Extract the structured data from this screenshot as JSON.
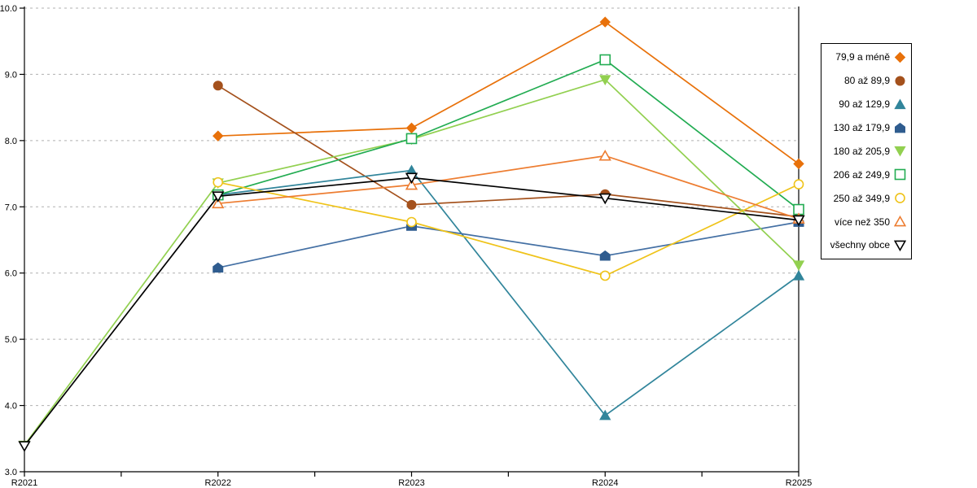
{
  "chart_data": {
    "type": "line",
    "title": "",
    "xlabel": "",
    "ylabel": "",
    "categories": [
      "R2021",
      "R2022",
      "R2023",
      "R2024",
      "R2025"
    ],
    "ylim": [
      3.0,
      10.0
    ],
    "ytick_step": 1.0,
    "ytick_labels": [
      "3.0",
      "4.0",
      "5.0",
      "6.0",
      "7.0",
      "8.0",
      "9.0",
      "10.0"
    ],
    "grid": "horizontal-dashed",
    "gridline_color": "#b0b0b0",
    "axis_color": "#000000",
    "legend_position": "right",
    "series": [
      {
        "name": "79,9 a méně",
        "color": "#E8710A",
        "marker": "diamond",
        "fill": "solid",
        "values": [
          null,
          8.07,
          8.19,
          9.79,
          7.65
        ]
      },
      {
        "name": "80 až 89,9",
        "color": "#A4511C",
        "marker": "circle",
        "fill": "solid",
        "values": [
          null,
          8.83,
          7.03,
          7.19,
          6.85
        ]
      },
      {
        "name": "90 až 129,9",
        "color": "#31859B",
        "marker": "triangle-up",
        "fill": "solid",
        "values": [
          null,
          7.18,
          7.55,
          3.85,
          5.96
        ]
      },
      {
        "name": "130 až 179,9",
        "color": "#4470A4",
        "marker_color": "#2F5C8F",
        "marker": "pentagon",
        "fill": "solid",
        "values": [
          null,
          6.08,
          6.71,
          6.26,
          6.77
        ]
      },
      {
        "name": "180 až 205,9",
        "color": "#92D050",
        "marker": "triangle-down",
        "fill": "solid",
        "values": [
          3.4,
          7.36,
          8.02,
          8.92,
          6.12
        ]
      },
      {
        "name": "206 až 249,9",
        "color": "#22AC52",
        "marker": "square",
        "fill": "open",
        "values": [
          null,
          7.18,
          8.03,
          9.22,
          6.96
        ]
      },
      {
        "name": "250 až 349,9",
        "color": "#EFC319",
        "marker": "circle",
        "fill": "open",
        "values": [
          null,
          7.37,
          6.77,
          5.96,
          7.34
        ]
      },
      {
        "name": "více než 350",
        "color": "#ED7D31",
        "marker": "triangle-up",
        "fill": "open",
        "values": [
          null,
          7.05,
          7.33,
          7.77,
          6.82
        ]
      },
      {
        "name": "všechny obce",
        "color": "#000000",
        "marker": "triangle-down",
        "fill": "open",
        "values": [
          3.39,
          7.16,
          7.44,
          7.13,
          6.8
        ]
      }
    ]
  }
}
